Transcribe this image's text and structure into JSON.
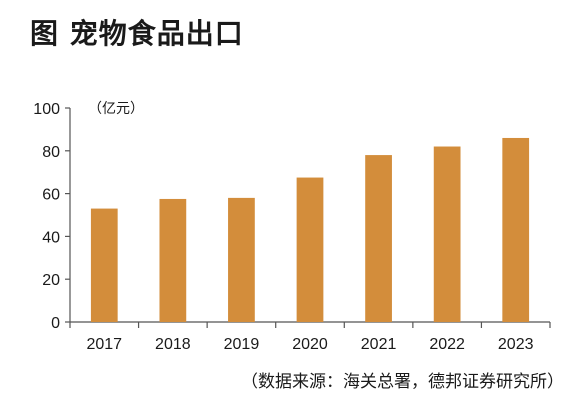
{
  "title": "图  宠物食品出口",
  "source": "（数据来源：海关总署，德邦证券研究所）",
  "colors": {
    "bar": "#D38D3B",
    "axis": "#555555",
    "text": "#1a1a1a"
  },
  "chart_data": {
    "type": "bar",
    "title": "图  宠物食品出口",
    "unit_label": "（亿元）",
    "categories": [
      "2017",
      "2018",
      "2019",
      "2020",
      "2021",
      "2022",
      "2023"
    ],
    "values": [
      53,
      57.5,
      58,
      67.5,
      78,
      82,
      86
    ],
    "ylim": [
      0,
      100
    ],
    "yticks": [
      0,
      20,
      40,
      60,
      80,
      100
    ],
    "grid": false,
    "legend": "none"
  }
}
